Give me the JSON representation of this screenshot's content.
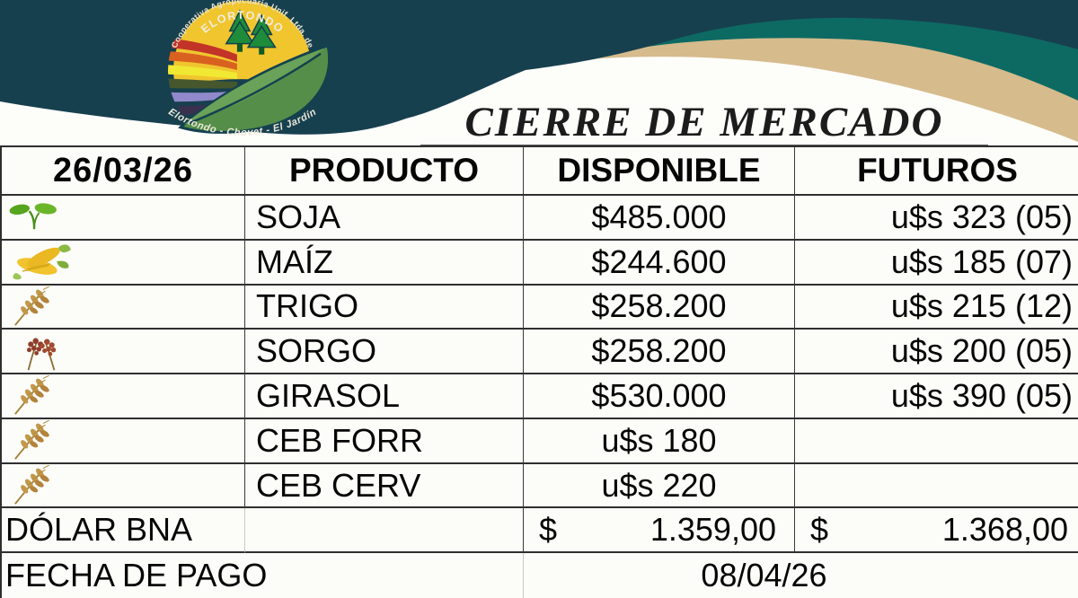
{
  "header": {
    "title": "CIERRE DE MERCADO"
  },
  "logo": {
    "arc_top": "Cooperativa Agropecuaria Unif. Ltda. de",
    "name": "ELORTONDO",
    "arc_bottom": "Elortondo - Chovet - El Jardín"
  },
  "colors": {
    "navy": "#17404f",
    "teal": "#0d6a63",
    "tan": "#d6bb8d",
    "leaf_green": "#548e49",
    "sun_yellow": "#f0c52e"
  },
  "table": {
    "date": "26/03/26",
    "headers": {
      "producto": "PRODUCTO",
      "disponible": "DISPONIBLE",
      "futuros": "FUTUROS"
    },
    "rows": [
      {
        "icon": "seedling-icon",
        "product": "SOJA",
        "disponible": "$485.000",
        "futuros": "u$s 323 (05)"
      },
      {
        "icon": "corn-icon",
        "product": "MAÍZ",
        "disponible": "$244.600",
        "futuros": "u$s 185 (07)"
      },
      {
        "icon": "wheat-icon",
        "product": "TRIGO",
        "disponible": "$258.200",
        "futuros": "u$s 215 (12)"
      },
      {
        "icon": "sorghum-icon",
        "product": "SORGO",
        "disponible": "$258.200",
        "futuros": "u$s 200 (05)"
      },
      {
        "icon": "wheat-icon",
        "product": "GIRASOL",
        "disponible": "$530.000",
        "futuros": "u$s 390 (05)"
      },
      {
        "icon": "wheat-icon",
        "product": "CEB FORR",
        "disponible": "u$s 180",
        "futuros": ""
      },
      {
        "icon": "wheat-icon",
        "product": "CEB CERV",
        "disponible": "u$s 220",
        "futuros": ""
      }
    ],
    "dolar": {
      "label": "DÓLAR BNA",
      "disponible_symbol": "$",
      "disponible_value": "1.359,00",
      "futuros_symbol": "$",
      "futuros_value": "1.368,00"
    },
    "fecha": {
      "label": "FECHA DE PAGO",
      "value": "08/04/26"
    }
  }
}
